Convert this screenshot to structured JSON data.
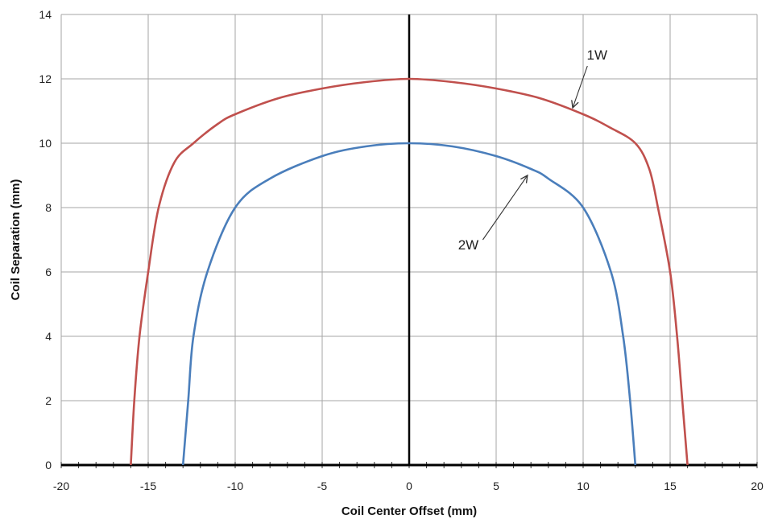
{
  "chart_data": {
    "type": "line",
    "title": "",
    "xlabel": "Coil Center Offset (mm)",
    "ylabel": "Coil Separation (mm)",
    "xlim": [
      -20,
      20
    ],
    "ylim": [
      0,
      14
    ],
    "xticks": [
      -20,
      -15,
      -10,
      -5,
      0,
      5,
      10,
      15,
      20
    ],
    "yticks": [
      0,
      2,
      4,
      6,
      8,
      10,
      12,
      14
    ],
    "grid": true,
    "series": [
      {
        "name": "1W",
        "color": "#c0504d",
        "x": [
          -16,
          -15.8,
          -15.5,
          -15,
          -14.4,
          -13.5,
          -12.4,
          -11,
          -10,
          -7.5,
          -5,
          -2.5,
          0,
          2.5,
          5,
          7.5,
          10,
          11.5,
          13,
          13.8,
          14.3,
          15,
          15.4,
          15.7,
          16
        ],
        "y": [
          0,
          2,
          4,
          6,
          8,
          9.4,
          10,
          10.6,
          10.9,
          11.4,
          11.7,
          11.9,
          12,
          11.9,
          11.7,
          11.4,
          10.9,
          10.5,
          10,
          9.2,
          8,
          6,
          4,
          2,
          0
        ]
      },
      {
        "name": "2W",
        "color": "#4a7ebb",
        "x": [
          -13,
          -12.7,
          -12.4,
          -11.6,
          -10,
          -8,
          -5,
          -2.5,
          0,
          2.5,
          5,
          7,
          8,
          10,
          11.6,
          12.3,
          12.7,
          13
        ],
        "y": [
          0,
          2,
          4,
          6,
          8,
          8.9,
          9.6,
          9.9,
          10,
          9.9,
          9.6,
          9.2,
          8.9,
          8,
          6,
          4,
          2,
          0
        ]
      }
    ],
    "annotations": [
      {
        "text": "1W",
        "label_at": [
          10.8,
          12.6
        ],
        "arrow_to": [
          9.4,
          11.1
        ]
      },
      {
        "text": "2W",
        "label_at": [
          3.4,
          6.7
        ],
        "arrow_to": [
          6.8,
          9.0
        ]
      }
    ]
  }
}
